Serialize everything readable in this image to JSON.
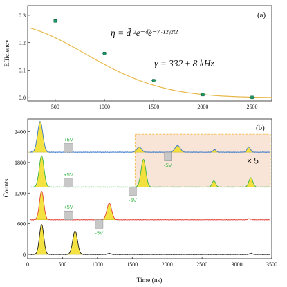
{
  "colors": {
    "fit": "#e8b84a",
    "marker": "#1f9a6a",
    "fill": "#f2df2e",
    "fill_edge": "#b9a400",
    "trace_blue": "#3b78c9",
    "trace_green": "#39b54a",
    "trace_red": "#e2453c",
    "trace_black": "#222222",
    "pulse_box": "#c8c8c8",
    "volt_pos": "#39b54a",
    "volt_neg": "#39b54a",
    "highlight_fill": "#f6dcc9",
    "highlight_edge": "#f2b83a"
  },
  "chart_data": [
    {
      "id": "a",
      "type": "scatter",
      "panel_label": "(a)",
      "xlabel": "",
      "ylabel": "Efficiency",
      "xlim": [
        220,
        2700
      ],
      "ylim": [
        -0.012,
        0.335
      ],
      "xticks": [
        500,
        1000,
        1500,
        2000,
        2500
      ],
      "yticks": [
        0.0,
        0.1,
        0.2,
        0.3
      ],
      "ytick_labels": [
        "0.0",
        "0.1",
        "0.2",
        "0.3"
      ],
      "points": [
        {
          "x": 500,
          "y": 0.279
        },
        {
          "x": 1000,
          "y": 0.161
        },
        {
          "x": 1500,
          "y": 0.062
        },
        {
          "x": 2000,
          "y": 0.011
        },
        {
          "x": 2500,
          "y": 0.001
        }
      ],
      "fit": {
        "model": "eta = A exp(-B) exp(-C t^2)",
        "A": 0.396,
        "B": 0.4,
        "C_per_ns2": 7.87e-07,
        "x_range": [
          250,
          2700
        ]
      },
      "equation_1": "η = d̃ ²e⁻ᵈ̃e⁻⁷·¹²ᵞ²ᵗ²",
      "equation_2": "γ = 332 ± 8 kHz"
    },
    {
      "id": "b",
      "type": "line",
      "panel_label": "(b)",
      "xlabel": "Time (ns)",
      "ylabel": "Counts",
      "xlim": [
        0,
        3500
      ],
      "ylim": [
        -80,
        2650
      ],
      "xticks": [
        0,
        500,
        1000,
        1500,
        2000,
        2500,
        3000,
        3500
      ],
      "yticks": [
        0,
        600,
        1200,
        1800,
        2400
      ],
      "series": [
        {
          "color_key": "trace_blue",
          "baseline": 2000,
          "peaks": [
            {
              "t": 180,
              "h": 600,
              "w": 60
            },
            {
              "t": 1600,
              "h": 100,
              "w": 55
            },
            {
              "t": 2150,
              "h": 130,
              "w": 60
            },
            {
              "t": 2680,
              "h": 50,
              "w": 35
            },
            {
              "t": 3170,
              "h": 100,
              "w": 40
            }
          ],
          "pulse": {
            "start": 520,
            "end": 650,
            "sign": 1,
            "label": "+5V"
          },
          "pulse2": {
            "start": 1960,
            "end": 2060,
            "sign": -1,
            "label": "-5V"
          }
        },
        {
          "color_key": "trace_green",
          "baseline": 1320,
          "peaks": [
            {
              "t": 200,
              "h": 610,
              "w": 55
            },
            {
              "t": 1660,
              "h": 540,
              "w": 55
            },
            {
              "t": 2670,
              "h": 120,
              "w": 40
            },
            {
              "t": 3200,
              "h": 180,
              "w": 45
            }
          ],
          "pulse": {
            "start": 520,
            "end": 650,
            "sign": 1,
            "label": "+5V"
          },
          "pulse2": {
            "start": 1450,
            "end": 1560,
            "sign": -1,
            "label": "-5V"
          }
        },
        {
          "color_key": "trace_red",
          "baseline": 680,
          "peaks": [
            {
              "t": 200,
              "h": 560,
              "w": 50
            },
            {
              "t": 1170,
              "h": 320,
              "w": 55
            },
            {
              "t": 3180,
              "h": 20,
              "w": 35
            }
          ],
          "pulse": {
            "start": 520,
            "end": 650,
            "sign": 1,
            "label": "+5V"
          },
          "pulse2": {
            "start": 970,
            "end": 1080,
            "sign": -1,
            "label": "-5V"
          }
        },
        {
          "color_key": "trace_black",
          "baseline": 0,
          "peaks": [
            {
              "t": 200,
              "h": 590,
              "w": 50
            },
            {
              "t": 680,
              "h": 460,
              "w": 55
            },
            {
              "t": 1170,
              "h": 18,
              "w": 40
            },
            {
              "t": 3200,
              "h": 20,
              "w": 35
            }
          ]
        }
      ],
      "highlight": {
        "x": [
          1540,
          3480
        ],
        "y": [
          1320,
          2350
        ]
      },
      "highlight_label": "× 5"
    }
  ]
}
